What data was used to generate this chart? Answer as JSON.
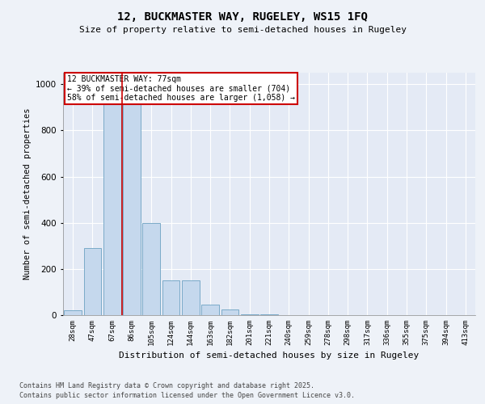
{
  "title1": "12, BUCKMASTER WAY, RUGELEY, WS15 1FQ",
  "title2": "Size of property relative to semi-detached houses in Rugeley",
  "xlabel": "Distribution of semi-detached houses by size in Rugeley",
  "ylabel": "Number of semi-detached properties",
  "categories": [
    "28sqm",
    "47sqm",
    "67sqm",
    "86sqm",
    "105sqm",
    "124sqm",
    "144sqm",
    "163sqm",
    "182sqm",
    "201sqm",
    "221sqm",
    "240sqm",
    "259sqm",
    "278sqm",
    "298sqm",
    "317sqm",
    "336sqm",
    "355sqm",
    "375sqm",
    "394sqm",
    "413sqm"
  ],
  "bar_heights": [
    20,
    290,
    930,
    930,
    400,
    150,
    150,
    45,
    25,
    5,
    2,
    1,
    0,
    0,
    0,
    0,
    0,
    0,
    0,
    0,
    0
  ],
  "bar_color": "#c5d8ed",
  "bar_edge_color": "#7aaac8",
  "red_line_x": 2.5,
  "annotation_text": "12 BUCKMASTER WAY: 77sqm\n← 39% of semi-detached houses are smaller (704)\n58% of semi-detached houses are larger (1,058) →",
  "annotation_box_color": "#ffffff",
  "annotation_border_color": "#cc0000",
  "red_line_color": "#cc0000",
  "ylim": [
    0,
    1050
  ],
  "yticks": [
    0,
    200,
    400,
    600,
    800,
    1000
  ],
  "footer1": "Contains HM Land Registry data © Crown copyright and database right 2025.",
  "footer2": "Contains public sector information licensed under the Open Government Licence v3.0.",
  "bg_color": "#eef2f8",
  "plot_bg_color": "#e4eaf5"
}
